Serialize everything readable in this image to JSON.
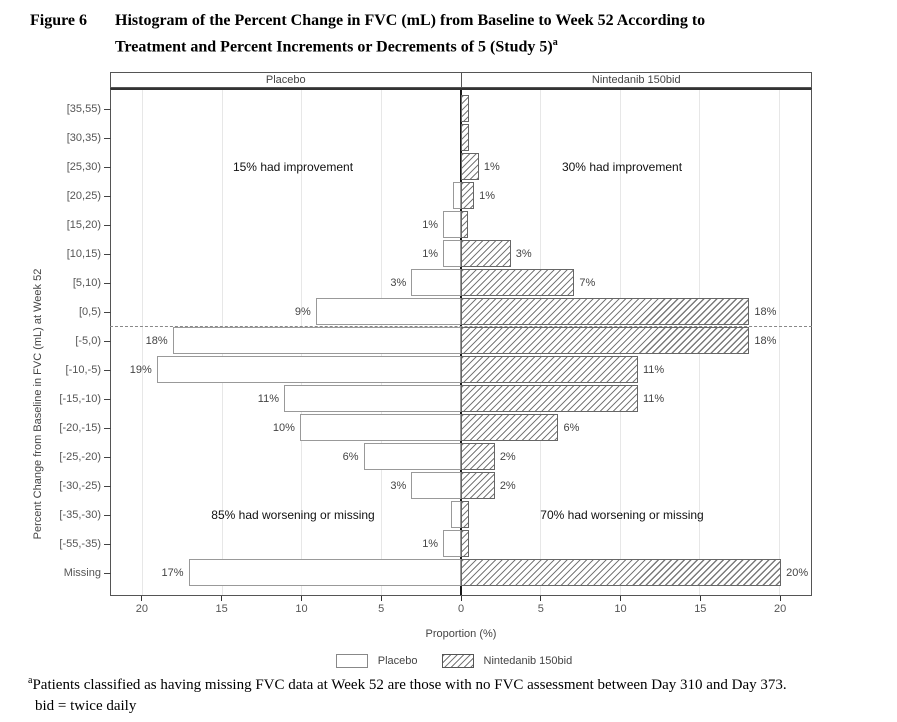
{
  "title": {
    "figure_label": "Figure 6",
    "line1": "Histogram of the Percent Change in FVC (mL) from Baseline to Week 52 According to",
    "line2": "Treatment and Percent Increments or Decrements of 5 (Study 5)",
    "superscript": "a"
  },
  "chart_data": {
    "type": "bar",
    "orientation": "horizontal-diverging",
    "panel_headers": [
      "Placebo",
      "Nintedanib 150bid"
    ],
    "ylabel": "Percent Change from Baseline in FVC (mL) at Week 52",
    "xlabel": "Proportion (%)",
    "categories": [
      "[35,55)",
      "[30,35)",
      "[25,30)",
      "[20,25)",
      "[15,20)",
      "[10,15)",
      "[5,10)",
      "[0,5)",
      "[-5,0)",
      "[-10,-5)",
      "[-15,-10)",
      "[-20,-15)",
      "[-25,-20)",
      "[-30,-25)",
      "[-35,-30)",
      "[-55,-35)",
      "Missing"
    ],
    "series": [
      {
        "name": "Placebo",
        "values": [
          0,
          0,
          0,
          0.4,
          1,
          1,
          3,
          9,
          18,
          19,
          11,
          10,
          6,
          3,
          0.5,
          1,
          17
        ],
        "labels": [
          "",
          "",
          "",
          "",
          "1%",
          "1%",
          "3%",
          "9%",
          "18%",
          "19%",
          "11%",
          "10%",
          "6%",
          "3%",
          "",
          "1%",
          "17%"
        ]
      },
      {
        "name": "Nintedanib 150bid",
        "values": [
          0.4,
          0.4,
          1.0,
          0.7,
          0.3,
          3,
          7,
          18,
          18,
          11,
          11,
          6,
          2,
          2,
          0.4,
          0.4,
          20
        ],
        "labels": [
          "",
          "",
          "1%",
          "1%",
          "",
          "3%",
          "7%",
          "18%",
          "18%",
          "11%",
          "11%",
          "6%",
          "2%",
          "2%",
          "",
          "",
          "20%"
        ]
      }
    ],
    "annotations": {
      "left_improvement": "15% had improvement",
      "right_improvement": "30% had improvement",
      "left_worsening": "85% had worsening or missing",
      "right_worsening": "70% had worsening or missing"
    },
    "x_axis": {
      "max_each_side": 22,
      "tick_values": [
        -20,
        -15,
        -10,
        -5,
        0,
        5,
        10,
        15,
        20
      ],
      "tick_labels": [
        "20",
        "15",
        "10",
        "5",
        "0",
        "5",
        "10",
        "15",
        "20"
      ],
      "gridline_values": [
        -20,
        -15,
        -10,
        -5,
        5,
        10,
        15,
        20
      ]
    },
    "dashed_line_after_row": 8,
    "legend": [
      {
        "label": "Placebo",
        "style": "open"
      },
      {
        "label": "Nintedanib 150bid",
        "style": "hatched"
      }
    ]
  },
  "footnote": {
    "marker": "a",
    "line1": "Patients classified as having missing FVC data at Week 52 are those with no FVC assessment between Day 310 and Day 373.",
    "line2": "bid = twice daily"
  }
}
